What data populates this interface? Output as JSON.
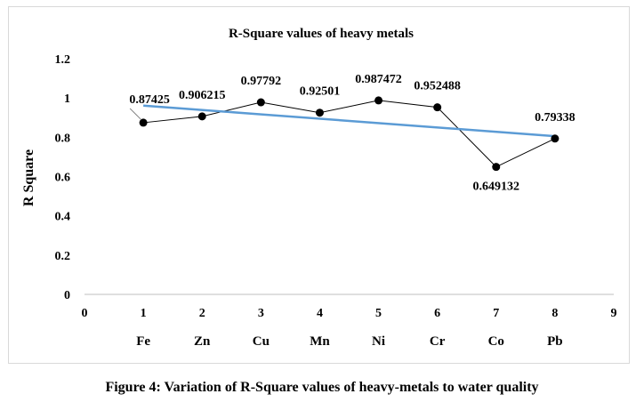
{
  "chart_data": {
    "type": "scatter",
    "title": "R-Square values of heavy metals",
    "ylabel": "R Square",
    "xlabel": "",
    "x": [
      1,
      2,
      3,
      4,
      5,
      6,
      7,
      8
    ],
    "y": [
      0.87425,
      0.906215,
      0.97792,
      0.92501,
      0.987472,
      0.952488,
      0.649132,
      0.79338
    ],
    "data_labels": [
      "0.87425",
      "0.906215",
      "0.97792",
      "0.92501",
      "0.987472",
      "0.952488",
      "0.649132",
      "0.79338"
    ],
    "categories": [
      "Fe",
      "Zn",
      "Cu",
      "Mn",
      "Ni",
      "Cr",
      "Co",
      "Pb"
    ],
    "xlim": [
      0,
      9
    ],
    "ylim": [
      0,
      1.2
    ],
    "x_ticks": [
      "0",
      "1",
      "2",
      "3",
      "4",
      "5",
      "6",
      "7",
      "8",
      "9"
    ],
    "y_ticks": [
      "0",
      "0.2",
      "0.4",
      "0.6",
      "0.8",
      "1",
      "1.2"
    ],
    "trendline": {
      "type": "linear",
      "color": "#5b9bd5"
    },
    "series_color": "#000000",
    "grid": false,
    "legend": "none"
  },
  "caption": "Figure 4: Variation of R-Square values of heavy-metals to water quality"
}
